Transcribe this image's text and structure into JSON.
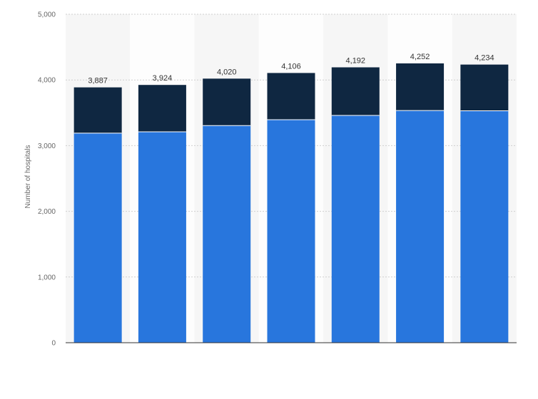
{
  "chart_data": {
    "type": "bar",
    "stacked": true,
    "ylabel": "Number of hospitals",
    "ylim": [
      0,
      5000
    ],
    "yticks": [
      "0",
      "1,000",
      "2,000",
      "3,000",
      "4,000",
      "5,000"
    ],
    "ytick_values": [
      0,
      1000,
      2000,
      3000,
      4000,
      5000
    ],
    "categories": [
      "",
      "",
      "",
      "",
      "",
      "",
      ""
    ],
    "series": [
      {
        "color": "#2876dd",
        "values": [
          3190,
          3210,
          3305,
          3395,
          3460,
          3535,
          3530
        ]
      },
      {
        "color": "#0f2741",
        "values": [
          697,
          714,
          715,
          711,
          732,
          717,
          704
        ]
      }
    ],
    "totals": [
      3887,
      3924,
      4020,
      4106,
      4192,
      4252,
      4234
    ],
    "total_labels": [
      "3,887",
      "3,924",
      "4,020",
      "4,106",
      "4,192",
      "4,252",
      "4,234"
    ],
    "grid": true,
    "legend": "none"
  }
}
